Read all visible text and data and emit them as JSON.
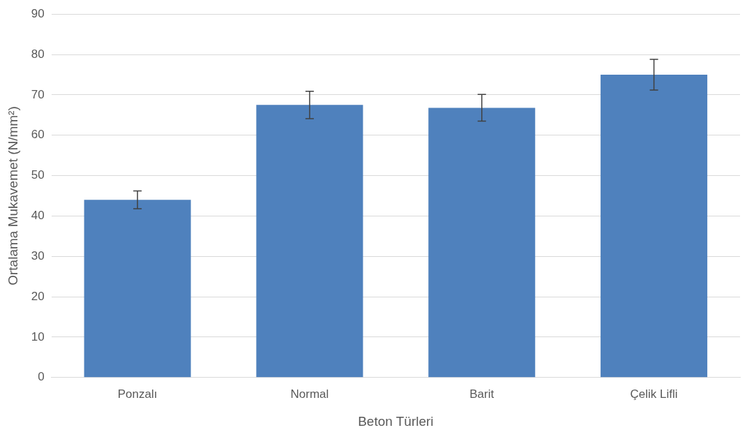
{
  "chart_data": {
    "type": "bar",
    "xlabel": "Beton Türleri",
    "ylabel": "Ortalama Mukavemet (N/mm²)",
    "categories": [
      "Ponzalı",
      "Normal",
      "Barit",
      "Çelik Lifli"
    ],
    "values": [
      44.0,
      67.5,
      66.8,
      75.0
    ],
    "errors": [
      2.2,
      3.4,
      3.3,
      3.8
    ],
    "color": "#4f81bd",
    "ylim": [
      0,
      90
    ],
    "yticks": [
      0,
      10,
      20,
      30,
      40,
      50,
      60,
      70,
      80,
      90
    ],
    "grid": "y",
    "legend": false
  }
}
